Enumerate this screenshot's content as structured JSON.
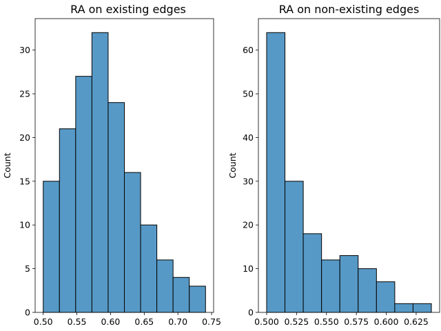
{
  "chart_data": [
    {
      "type": "bar",
      "title": "RA on existing edges",
      "xlabel": "",
      "ylabel": "Count",
      "bin_edges": [
        0.5,
        0.5241,
        0.5482,
        0.5723,
        0.5964,
        0.6205,
        0.6446,
        0.6687,
        0.6928,
        0.7169,
        0.741
      ],
      "values": [
        15,
        21,
        27,
        32,
        24,
        16,
        10,
        6,
        4,
        3
      ],
      "xlim": [
        0.488,
        0.753
      ],
      "ylim": [
        0,
        33.6
      ],
      "xticks": [
        0.5,
        0.55,
        0.6,
        0.65,
        0.7,
        0.75
      ],
      "xtick_labels": [
        "0.50",
        "0.55",
        "0.60",
        "0.65",
        "0.70",
        "0.75"
      ],
      "yticks": [
        0,
        5,
        10,
        15,
        20,
        25,
        30
      ],
      "ytick_labels": [
        "0",
        "5",
        "10",
        "15",
        "20",
        "25",
        "30"
      ],
      "bar_color": "#5799c6",
      "edge_color": "#000000",
      "grid": false,
      "legend": "none"
    },
    {
      "type": "bar",
      "title": "RA on non-existing edges",
      "xlabel": "",
      "ylabel": "Count",
      "bin_edges": [
        0.5,
        0.5153,
        0.5306,
        0.5459,
        0.5612,
        0.5765,
        0.5918,
        0.6071,
        0.6224,
        0.6377
      ],
      "values": [
        64,
        30,
        18,
        12,
        13,
        10,
        7,
        2,
        2
      ],
      "xlim": [
        0.4931,
        0.6446
      ],
      "ylim": [
        0,
        67.2
      ],
      "xticks": [
        0.5,
        0.525,
        0.55,
        0.575,
        0.6,
        0.625
      ],
      "xtick_labels": [
        "0.500",
        "0.525",
        "0.550",
        "0.575",
        "0.600",
        "0.625"
      ],
      "yticks": [
        0,
        10,
        20,
        30,
        40,
        50,
        60
      ],
      "ytick_labels": [
        "0",
        "10",
        "20",
        "30",
        "40",
        "50",
        "60"
      ],
      "bar_color": "#5799c6",
      "edge_color": "#000000",
      "grid": false,
      "legend": "none"
    }
  ]
}
